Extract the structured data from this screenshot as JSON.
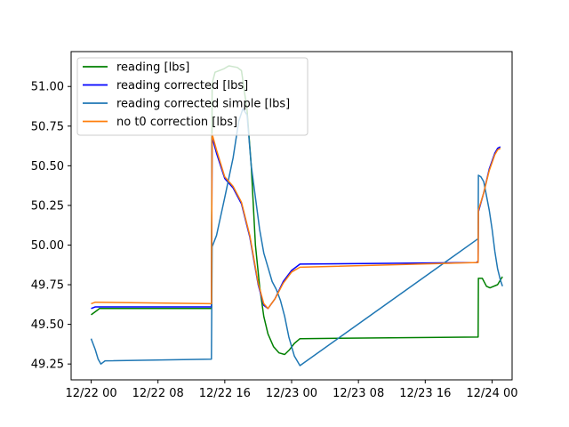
{
  "chart_data": {
    "type": "line",
    "title": "",
    "xlabel": "",
    "ylabel": "",
    "xlim": [
      "2021-12-21 21:36",
      "2021-12-24 02:24"
    ],
    "ylim": [
      49.15,
      51.22
    ],
    "x_ticks": [
      {
        "t": "2021-12-22 00:00",
        "label": "12/22 00"
      },
      {
        "t": "2021-12-22 08:00",
        "label": "12/22 08"
      },
      {
        "t": "2021-12-22 16:00",
        "label": "12/22 16"
      },
      {
        "t": "2021-12-23 00:00",
        "label": "12/23 00"
      },
      {
        "t": "2021-12-23 08:00",
        "label": "12/23 08"
      },
      {
        "t": "2021-12-23 16:00",
        "label": "12/23 16"
      },
      {
        "t": "2021-12-24 00:00",
        "label": "12/24 00"
      }
    ],
    "y_ticks": [
      {
        "v": 49.25,
        "label": "49.25"
      },
      {
        "v": 49.5,
        "label": "49.50"
      },
      {
        "v": 49.75,
        "label": "49.75"
      },
      {
        "v": 50.0,
        "label": "50.00"
      },
      {
        "v": 50.25,
        "label": "50.25"
      },
      {
        "v": 50.5,
        "label": "50.50"
      },
      {
        "v": 50.75,
        "label": "50.75"
      },
      {
        "v": 51.0,
        "label": "51.00"
      }
    ],
    "grid": false,
    "legend_position": "top-left",
    "series": [
      {
        "name": "reading [lbs]",
        "color": "#008000",
        "points": [
          [
            "2021-12-22 00:00",
            49.56
          ],
          [
            "2021-12-22 00:45",
            49.59
          ],
          [
            "2021-12-22 01:00",
            49.6
          ],
          [
            "2021-12-22 14:24",
            49.6
          ],
          [
            "2021-12-22 14:29",
            51.02
          ],
          [
            "2021-12-22 14:50",
            51.09
          ],
          [
            "2021-12-22 15:50",
            51.11
          ],
          [
            "2021-12-22 16:30",
            51.13
          ],
          [
            "2021-12-22 17:30",
            51.12
          ],
          [
            "2021-12-22 18:00",
            51.1
          ],
          [
            "2021-12-22 18:40",
            50.85
          ],
          [
            "2021-12-22 19:10",
            50.5
          ],
          [
            "2021-12-22 19:40",
            50.0
          ],
          [
            "2021-12-22 20:10",
            49.74
          ],
          [
            "2021-12-22 20:40",
            49.55
          ],
          [
            "2021-12-22 21:10",
            49.44
          ],
          [
            "2021-12-22 21:50",
            49.36
          ],
          [
            "2021-12-22 22:30",
            49.32
          ],
          [
            "2021-12-22 23:10",
            49.31
          ],
          [
            "2021-12-22 23:45",
            49.34
          ],
          [
            "2021-12-23 00:20",
            49.38
          ],
          [
            "2021-12-23 01:00",
            49.41
          ],
          [
            "2021-12-23 22:20",
            49.42
          ],
          [
            "2021-12-23 22:22",
            49.79
          ],
          [
            "2021-12-23 22:50",
            49.79
          ],
          [
            "2021-12-23 23:20",
            49.74
          ],
          [
            "2021-12-23 23:45",
            49.73
          ],
          [
            "2021-12-24 00:40",
            49.75
          ],
          [
            "2021-12-24 01:00",
            49.78
          ],
          [
            "2021-12-24 01:15",
            49.8
          ]
        ]
      },
      {
        "name": "reading corrected [lbs]",
        "color": "#0000ff",
        "points": [
          [
            "2021-12-22 00:00",
            49.6
          ],
          [
            "2021-12-22 00:30",
            49.61
          ],
          [
            "2021-12-22 14:24",
            49.61
          ],
          [
            "2021-12-22 14:29",
            50.68
          ],
          [
            "2021-12-22 15:00",
            50.58
          ],
          [
            "2021-12-22 16:00",
            50.42
          ],
          [
            "2021-12-22 17:00",
            50.36
          ],
          [
            "2021-12-22 18:00",
            50.26
          ],
          [
            "2021-12-22 19:00",
            50.05
          ],
          [
            "2021-12-22 20:00",
            49.75
          ],
          [
            "2021-12-22 20:40",
            49.62
          ],
          [
            "2021-12-22 21:10",
            49.6
          ],
          [
            "2021-12-22 22:00",
            49.66
          ],
          [
            "2021-12-22 23:00",
            49.77
          ],
          [
            "2021-12-23 00:00",
            49.84
          ],
          [
            "2021-12-23 01:00",
            49.88
          ],
          [
            "2021-12-23 22:10",
            49.89
          ],
          [
            "2021-12-23 22:20",
            49.9
          ],
          [
            "2021-12-23 22:22",
            50.21
          ],
          [
            "2021-12-23 23:00",
            50.33
          ],
          [
            "2021-12-23 23:40",
            50.48
          ],
          [
            "2021-12-24 00:20",
            50.58
          ],
          [
            "2021-12-24 00:40",
            50.61
          ],
          [
            "2021-12-24 01:00",
            50.62
          ]
        ]
      },
      {
        "name": "reading corrected simple [lbs]",
        "color": "#1f77b4",
        "points": [
          [
            "2021-12-22 00:00",
            49.41
          ],
          [
            "2021-12-22 00:30",
            49.34
          ],
          [
            "2021-12-22 00:50",
            49.28
          ],
          [
            "2021-12-22 01:10",
            49.25
          ],
          [
            "2021-12-22 01:40",
            49.27
          ],
          [
            "2021-12-22 14:24",
            49.28
          ],
          [
            "2021-12-22 14:29",
            49.99
          ],
          [
            "2021-12-22 15:00",
            50.06
          ],
          [
            "2021-12-22 16:00",
            50.3
          ],
          [
            "2021-12-22 17:00",
            50.55
          ],
          [
            "2021-12-22 17:40",
            50.78
          ],
          [
            "2021-12-22 18:10",
            50.86
          ],
          [
            "2021-12-22 18:40",
            50.82
          ],
          [
            "2021-12-22 19:10",
            50.5
          ],
          [
            "2021-12-22 19:40",
            50.3
          ],
          [
            "2021-12-22 20:10",
            50.1
          ],
          [
            "2021-12-22 20:40",
            49.95
          ],
          [
            "2021-12-22 21:10",
            49.86
          ],
          [
            "2021-12-22 21:40",
            49.77
          ],
          [
            "2021-12-22 22:10",
            49.72
          ],
          [
            "2021-12-22 22:40",
            49.65
          ],
          [
            "2021-12-22 23:10",
            49.55
          ],
          [
            "2021-12-22 23:40",
            49.42
          ],
          [
            "2021-12-23 00:20",
            49.3
          ],
          [
            "2021-12-23 01:00",
            49.24
          ],
          [
            "2021-12-23 22:20",
            50.04
          ],
          [
            "2021-12-23 22:22",
            50.44
          ],
          [
            "2021-12-23 22:40",
            50.43
          ],
          [
            "2021-12-23 23:00",
            50.4
          ],
          [
            "2021-12-23 23:20",
            50.31
          ],
          [
            "2021-12-23 23:40",
            50.22
          ],
          [
            "2021-12-24 00:00",
            50.1
          ],
          [
            "2021-12-24 00:20",
            49.96
          ],
          [
            "2021-12-24 00:40",
            49.85
          ],
          [
            "2021-12-24 01:00",
            49.78
          ],
          [
            "2021-12-24 01:15",
            49.74
          ]
        ]
      },
      {
        "name": "no t0 correction [lbs]",
        "color": "#ff7f0e",
        "points": [
          [
            "2021-12-22 00:00",
            49.63
          ],
          [
            "2021-12-22 00:30",
            49.64
          ],
          [
            "2021-12-22 14:24",
            49.63
          ],
          [
            "2021-12-22 14:29",
            50.7
          ],
          [
            "2021-12-22 15:00",
            50.6
          ],
          [
            "2021-12-22 16:00",
            50.43
          ],
          [
            "2021-12-22 17:00",
            50.37
          ],
          [
            "2021-12-22 18:00",
            50.27
          ],
          [
            "2021-12-22 19:00",
            50.06
          ],
          [
            "2021-12-22 20:00",
            49.76
          ],
          [
            "2021-12-22 20:40",
            49.63
          ],
          [
            "2021-12-22 21:10",
            49.6
          ],
          [
            "2021-12-22 22:00",
            49.66
          ],
          [
            "2021-12-22 23:00",
            49.76
          ],
          [
            "2021-12-23 00:00",
            49.83
          ],
          [
            "2021-12-23 01:00",
            49.86
          ],
          [
            "2021-12-23 22:10",
            49.89
          ],
          [
            "2021-12-23 22:20",
            49.89
          ],
          [
            "2021-12-23 22:22",
            50.22
          ],
          [
            "2021-12-23 23:00",
            50.33
          ],
          [
            "2021-12-23 23:40",
            50.47
          ],
          [
            "2021-12-24 00:20",
            50.57
          ],
          [
            "2021-12-24 00:40",
            50.6
          ],
          [
            "2021-12-24 01:00",
            50.61
          ]
        ]
      }
    ]
  }
}
